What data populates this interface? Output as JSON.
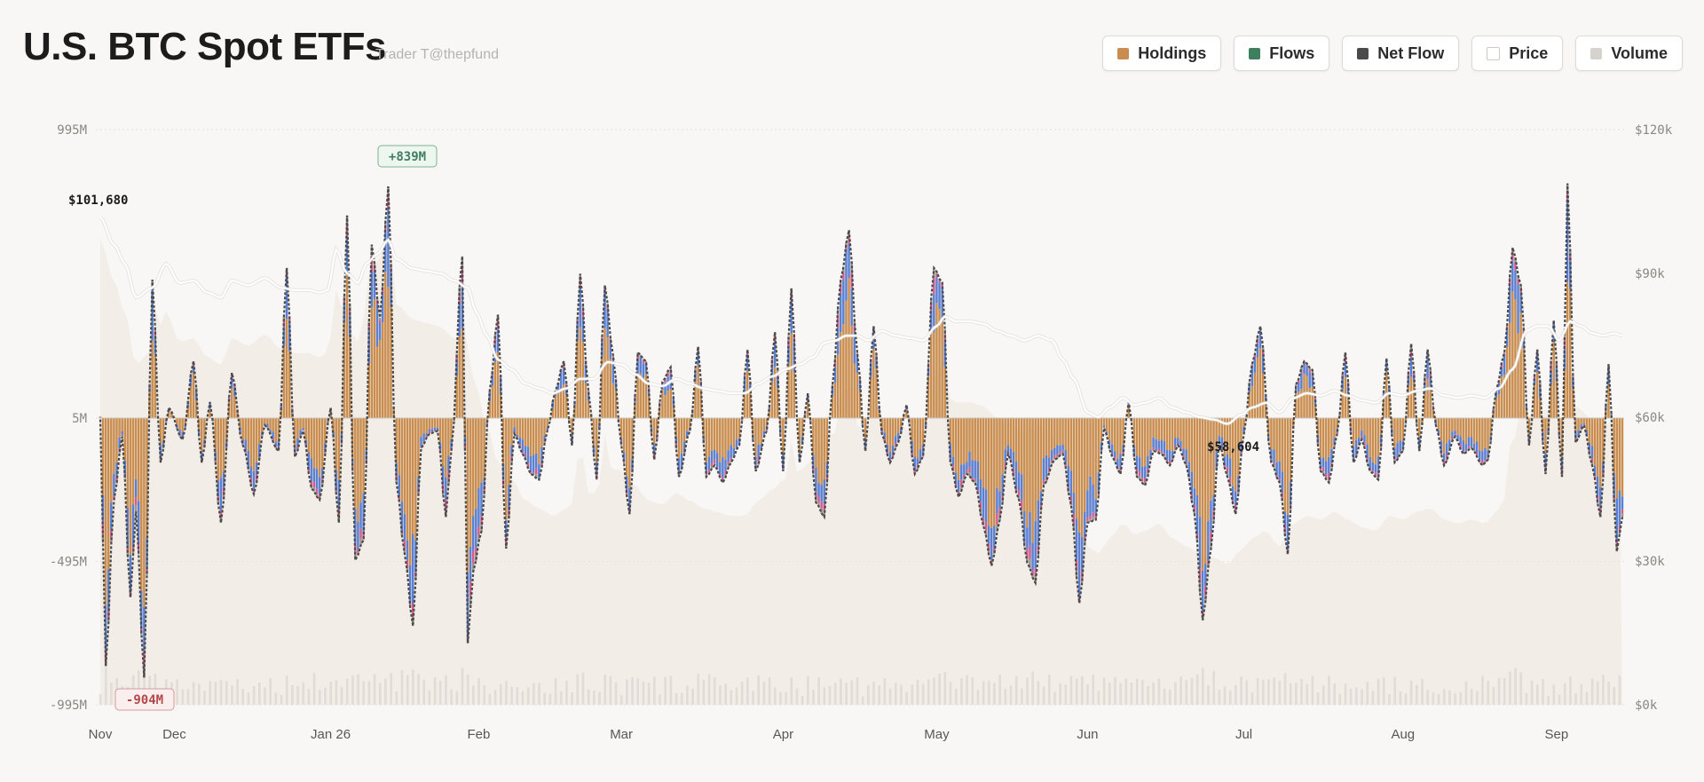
{
  "header": {
    "title": "U.S. BTC Spot ETFs",
    "subtitle": "Trader T@thepfund"
  },
  "legend": {
    "items": [
      {
        "label": "Holdings",
        "color": "#c98d4f",
        "icon": "square-swatch"
      },
      {
        "label": "Flows",
        "color": "#3f7f60",
        "icon": "square-swatch"
      },
      {
        "label": "Net Flow",
        "color": "#4a4a4a",
        "icon": "square-swatch"
      },
      {
        "label": "Price",
        "color": "#ffffff",
        "icon": "square-swatch"
      },
      {
        "label": "Volume",
        "color": "#d6d3cf",
        "icon": "square-swatch"
      }
    ]
  },
  "chart_data": {
    "type": "bar",
    "title": "U.S. BTC Spot ETFs",
    "left_axis": {
      "ticks": [
        "995M",
        "5M",
        "-495M",
        "-995M"
      ],
      "values": [
        995,
        5,
        -495,
        -995
      ],
      "unit": "USD millions"
    },
    "right_axis": {
      "ticks": [
        "$120k",
        "$90k",
        "$60k",
        "$30k",
        "$0k"
      ],
      "values": [
        120000,
        90000,
        60000,
        30000,
        0
      ]
    },
    "x_ticks": [
      "Nov",
      "Dec",
      "Jan 26",
      "Feb",
      "Mar",
      "Apr",
      "May",
      "Jun",
      "Jul",
      "Aug",
      "Sep"
    ],
    "x_tick_index": [
      0,
      27,
      84,
      138,
      190,
      249,
      305,
      360,
      417,
      475,
      531
    ],
    "annotations": [
      {
        "label": "$101,680",
        "type": "price-start"
      },
      {
        "label": "+839M",
        "type": "max-flow"
      },
      {
        "label": "-904M",
        "type": "min-flow"
      },
      {
        "label": "$58,604",
        "type": "price-low"
      }
    ],
    "colors": {
      "holdings": "#c98d4f",
      "blue": "#5b7fd1",
      "pink": "#cf5f8e",
      "grey": "#9b9690",
      "netflow": "#4a4a4a",
      "price": "#ffffff",
      "volume": "#d6d3cf",
      "holdings_area": "#efe6db"
    },
    "net_flow_anchors": [
      [
        0,
        0
      ],
      [
        2,
        -860
      ],
      [
        5,
        -280
      ],
      [
        8,
        -60
      ],
      [
        11,
        -620
      ],
      [
        13,
        -320
      ],
      [
        16,
        -900
      ],
      [
        19,
        480
      ],
      [
        22,
        -150
      ],
      [
        25,
        40
      ],
      [
        30,
        -70
      ],
      [
        34,
        200
      ],
      [
        37,
        -150
      ],
      [
        40,
        60
      ],
      [
        44,
        -360
      ],
      [
        48,
        160
      ],
      [
        52,
        -90
      ],
      [
        56,
        -260
      ],
      [
        60,
        -20
      ],
      [
        65,
        -110
      ],
      [
        68,
        520
      ],
      [
        71,
        -130
      ],
      [
        74,
        -40
      ],
      [
        77,
        -240
      ],
      [
        80,
        -280
      ],
      [
        84,
        40
      ],
      [
        87,
        -360
      ],
      [
        90,
        700
      ],
      [
        93,
        -490
      ],
      [
        96,
        -420
      ],
      [
        99,
        600
      ],
      [
        102,
        350
      ],
      [
        105,
        800
      ],
      [
        108,
        -220
      ],
      [
        111,
        -470
      ],
      [
        114,
        -720
      ],
      [
        117,
        -100
      ],
      [
        120,
        -50
      ],
      [
        123,
        -40
      ],
      [
        126,
        -340
      ],
      [
        128,
        -110
      ],
      [
        132,
        560
      ],
      [
        134,
        -780
      ],
      [
        136,
        -530
      ],
      [
        139,
        -390
      ],
      [
        142,
        100
      ],
      [
        145,
        360
      ],
      [
        148,
        -450
      ],
      [
        151,
        -50
      ],
      [
        154,
        -120
      ],
      [
        157,
        -190
      ],
      [
        160,
        -210
      ],
      [
        163,
        -40
      ],
      [
        166,
        100
      ],
      [
        169,
        200
      ],
      [
        172,
        -90
      ],
      [
        175,
        500
      ],
      [
        178,
        100
      ],
      [
        181,
        -210
      ],
      [
        184,
        460
      ],
      [
        187,
        220
      ],
      [
        190,
        -90
      ],
      [
        193,
        -330
      ],
      [
        196,
        230
      ],
      [
        199,
        200
      ],
      [
        202,
        -140
      ],
      [
        205,
        130
      ],
      [
        208,
        180
      ],
      [
        211,
        -200
      ],
      [
        215,
        -40
      ],
      [
        218,
        250
      ],
      [
        221,
        -200
      ],
      [
        224,
        -160
      ],
      [
        227,
        -220
      ],
      [
        230,
        -150
      ],
      [
        233,
        -90
      ],
      [
        236,
        240
      ],
      [
        239,
        -180
      ],
      [
        243,
        -40
      ],
      [
        246,
        300
      ],
      [
        249,
        -180
      ],
      [
        252,
        450
      ],
      [
        255,
        -150
      ],
      [
        258,
        90
      ],
      [
        261,
        -290
      ],
      [
        264,
        -340
      ],
      [
        267,
        120
      ],
      [
        270,
        480
      ],
      [
        273,
        650
      ],
      [
        276,
        230
      ],
      [
        279,
        -110
      ],
      [
        282,
        320
      ],
      [
        285,
        -50
      ],
      [
        288,
        -150
      ],
      [
        291,
        -80
      ],
      [
        294,
        50
      ],
      [
        297,
        -190
      ],
      [
        300,
        -130
      ],
      [
        304,
        520
      ],
      [
        307,
        470
      ],
      [
        310,
        -150
      ],
      [
        313,
        -270
      ],
      [
        316,
        -190
      ],
      [
        319,
        -220
      ],
      [
        322,
        -370
      ],
      [
        325,
        -510
      ],
      [
        328,
        -350
      ],
      [
        331,
        -120
      ],
      [
        335,
        -280
      ],
      [
        338,
        -500
      ],
      [
        341,
        -570
      ],
      [
        344,
        -230
      ],
      [
        348,
        -140
      ],
      [
        351,
        -120
      ],
      [
        354,
        -300
      ],
      [
        357,
        -640
      ],
      [
        360,
        -360
      ],
      [
        363,
        -350
      ],
      [
        366,
        -30
      ],
      [
        369,
        -130
      ],
      [
        372,
        -190
      ],
      [
        375,
        60
      ],
      [
        378,
        -200
      ],
      [
        381,
        -230
      ],
      [
        384,
        -110
      ],
      [
        387,
        -120
      ],
      [
        390,
        -160
      ],
      [
        393,
        -90
      ],
      [
        396,
        -160
      ],
      [
        399,
        -330
      ],
      [
        402,
        -700
      ],
      [
        405,
        -450
      ],
      [
        408,
        -80
      ],
      [
        411,
        -200
      ],
      [
        414,
        -330
      ],
      [
        417,
        -50
      ],
      [
        420,
        190
      ],
      [
        423,
        320
      ],
      [
        427,
        -150
      ],
      [
        430,
        -220
      ],
      [
        433,
        -470
      ],
      [
        436,
        120
      ],
      [
        439,
        200
      ],
      [
        442,
        170
      ],
      [
        445,
        -180
      ],
      [
        448,
        -220
      ],
      [
        451,
        -50
      ],
      [
        454,
        230
      ],
      [
        457,
        -150
      ],
      [
        460,
        -70
      ],
      [
        463,
        -180
      ],
      [
        466,
        -210
      ],
      [
        469,
        210
      ],
      [
        472,
        -150
      ],
      [
        475,
        -110
      ],
      [
        478,
        260
      ],
      [
        481,
        -110
      ],
      [
        484,
        240
      ],
      [
        487,
        -20
      ],
      [
        490,
        -160
      ],
      [
        494,
        -60
      ],
      [
        497,
        -120
      ],
      [
        500,
        -100
      ],
      [
        504,
        -160
      ],
      [
        506,
        -140
      ],
      [
        509,
        100
      ],
      [
        512,
        230
      ],
      [
        515,
        590
      ],
      [
        518,
        460
      ],
      [
        521,
        -90
      ],
      [
        524,
        240
      ],
      [
        527,
        -190
      ],
      [
        530,
        340
      ],
      [
        533,
        -200
      ],
      [
        535,
        810
      ],
      [
        538,
        -80
      ],
      [
        541,
        -20
      ],
      [
        544,
        -160
      ],
      [
        547,
        -340
      ],
      [
        550,
        190
      ],
      [
        553,
        -460
      ],
      [
        555,
        -340
      ]
    ],
    "price_anchors": [
      [
        0,
        101680
      ],
      [
        5,
        96000
      ],
      [
        9,
        92000
      ],
      [
        13,
        85000
      ],
      [
        19,
        87000
      ],
      [
        24,
        92000
      ],
      [
        29,
        88000
      ],
      [
        34,
        88500
      ],
      [
        39,
        86000
      ],
      [
        44,
        85000
      ],
      [
        48,
        88500
      ],
      [
        54,
        87500
      ],
      [
        60,
        89000
      ],
      [
        66,
        87000
      ],
      [
        71,
        86500
      ],
      [
        76,
        86500
      ],
      [
        80,
        86000
      ],
      [
        83,
        86500
      ],
      [
        86,
        95000
      ],
      [
        90,
        90000
      ],
      [
        94,
        88000
      ],
      [
        97,
        92000
      ],
      [
        101,
        94000
      ],
      [
        105,
        97000
      ],
      [
        108,
        93000
      ],
      [
        114,
        91000
      ],
      [
        119,
        90500
      ],
      [
        124,
        90000
      ],
      [
        129,
        88500
      ],
      [
        134,
        87000
      ],
      [
        137,
        82000
      ],
      [
        141,
        77000
      ],
      [
        145,
        72000
      ],
      [
        150,
        70000
      ],
      [
        155,
        67000
      ],
      [
        160,
        66000
      ],
      [
        165,
        65000
      ],
      [
        170,
        66000
      ],
      [
        175,
        68000
      ],
      [
        180,
        68000
      ],
      [
        185,
        71500
      ],
      [
        190,
        71000
      ],
      [
        195,
        69000
      ],
      [
        200,
        67000
      ],
      [
        205,
        66500
      ],
      [
        210,
        68000
      ],
      [
        215,
        67000
      ],
      [
        220,
        66000
      ],
      [
        225,
        65500
      ],
      [
        230,
        65000
      ],
      [
        235,
        65000
      ],
      [
        240,
        67000
      ],
      [
        245,
        68500
      ],
      [
        250,
        70000
      ],
      [
        255,
        71000
      ],
      [
        260,
        72500
      ],
      [
        264,
        75500
      ],
      [
        268,
        76000
      ],
      [
        272,
        77000
      ],
      [
        276,
        77000
      ],
      [
        280,
        76000
      ],
      [
        285,
        78000
      ],
      [
        290,
        77000
      ],
      [
        295,
        76500
      ],
      [
        300,
        76000
      ],
      [
        305,
        79000
      ],
      [
        308,
        81000
      ],
      [
        312,
        80000
      ],
      [
        317,
        80000
      ],
      [
        322,
        79500
      ],
      [
        327,
        78000
      ],
      [
        332,
        77000
      ],
      [
        337,
        76000
      ],
      [
        342,
        77000
      ],
      [
        347,
        76000
      ],
      [
        351,
        72000
      ],
      [
        355,
        68000
      ],
      [
        360,
        61000
      ],
      [
        364,
        60000
      ],
      [
        368,
        62000
      ],
      [
        373,
        64000
      ],
      [
        377,
        62500
      ],
      [
        381,
        63000
      ],
      [
        386,
        64000
      ],
      [
        391,
        62000
      ],
      [
        396,
        61000
      ],
      [
        401,
        60000
      ],
      [
        406,
        59500
      ],
      [
        411,
        58604
      ],
      [
        416,
        60500
      ],
      [
        420,
        62000
      ],
      [
        425,
        63000
      ],
      [
        430,
        61000
      ],
      [
        435,
        64000
      ],
      [
        440,
        65000
      ],
      [
        445,
        64500
      ],
      [
        450,
        65500
      ],
      [
        455,
        64500
      ],
      [
        460,
        63500
      ],
      [
        465,
        63000
      ],
      [
        470,
        65000
      ],
      [
        475,
        64500
      ],
      [
        480,
        65500
      ],
      [
        485,
        66000
      ],
      [
        490,
        64500
      ],
      [
        495,
        64000
      ],
      [
        500,
        64500
      ],
      [
        505,
        64000
      ],
      [
        510,
        66000
      ],
      [
        515,
        70000
      ],
      [
        520,
        78000
      ],
      [
        524,
        79000
      ],
      [
        528,
        79000
      ],
      [
        532,
        76000
      ],
      [
        536,
        80000
      ],
      [
        540,
        79000
      ],
      [
        544,
        77500
      ],
      [
        548,
        77000
      ],
      [
        552,
        77500
      ],
      [
        555,
        77000
      ]
    ]
  }
}
